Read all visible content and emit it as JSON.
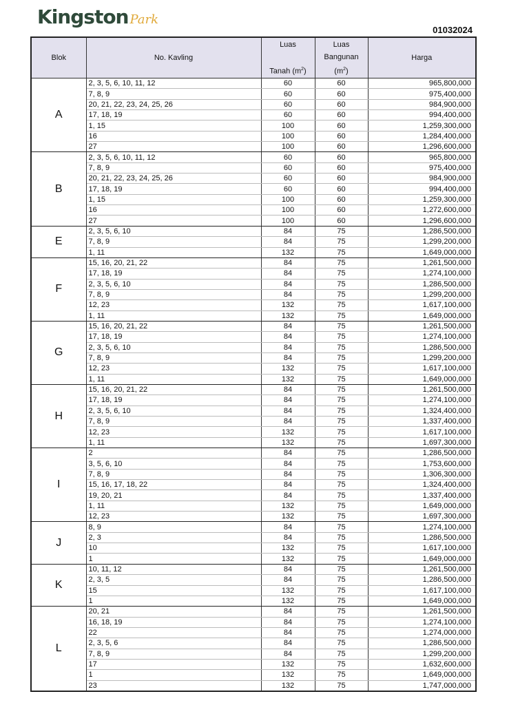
{
  "logo": {
    "main": "Kingston",
    "script": "Park"
  },
  "doc_code": "01032024",
  "headers": {
    "blok": "Blok",
    "kavling": "No. Kavling",
    "bangunan_1": "Luas",
    "bangunan_2": "Bangunan",
    "unit": "(m",
    "sq": "2",
    "close": ")",
    "harga": "Harga",
    "tanah_1": "Luas",
    "tanah_2": "Tanah"
  },
  "blocks": [
    {
      "blok": "A",
      "rows": [
        [
          "2, 3, 5, 6, 10, 11, 12",
          "60",
          "60",
          "965,800,000"
        ],
        [
          "7, 8, 9",
          "60",
          "60",
          "975,400,000"
        ],
        [
          "20, 21, 22, 23, 24, 25, 26",
          "60",
          "60",
          "984,900,000"
        ],
        [
          "17, 18, 19",
          "60",
          "60",
          "994,400,000"
        ],
        [
          "1, 15",
          "100",
          "60",
          "1,259,300,000"
        ],
        [
          "16",
          "100",
          "60",
          "1,284,400,000"
        ],
        [
          "27",
          "100",
          "60",
          "1,296,600,000"
        ]
      ]
    },
    {
      "blok": "B",
      "rows": [
        [
          "2, 3, 5, 6, 10, 11, 12",
          "60",
          "60",
          "965,800,000"
        ],
        [
          "7, 8, 9",
          "60",
          "60",
          "975,400,000"
        ],
        [
          "20, 21, 22, 23, 24, 25, 26",
          "60",
          "60",
          "984,900,000"
        ],
        [
          "17, 18, 19",
          "60",
          "60",
          "994,400,000"
        ],
        [
          "1, 15",
          "100",
          "60",
          "1,259,300,000"
        ],
        [
          "16",
          "100",
          "60",
          "1,272,600,000"
        ],
        [
          "27",
          "100",
          "60",
          "1,296,600,000"
        ]
      ]
    },
    {
      "blok": "E",
      "rows": [
        [
          "2, 3, 5, 6, 10",
          "84",
          "75",
          "1,286,500,000"
        ],
        [
          "7, 8, 9",
          "84",
          "75",
          "1,299,200,000"
        ],
        [
          "1, 11",
          "132",
          "75",
          "1,649,000,000"
        ]
      ]
    },
    {
      "blok": "F",
      "rows": [
        [
          "15, 16, 20, 21, 22",
          "84",
          "75",
          "1,261,500,000"
        ],
        [
          "17, 18, 19",
          "84",
          "75",
          "1,274,100,000"
        ],
        [
          "2, 3, 5, 6, 10",
          "84",
          "75",
          "1,286,500,000"
        ],
        [
          "7, 8, 9",
          "84",
          "75",
          "1,299,200,000"
        ],
        [
          "12, 23",
          "132",
          "75",
          "1,617,100,000"
        ],
        [
          "1, 11",
          "132",
          "75",
          "1,649,000,000"
        ]
      ]
    },
    {
      "blok": "G",
      "rows": [
        [
          "15, 16, 20, 21, 22",
          "84",
          "75",
          "1,261,500,000"
        ],
        [
          "17, 18, 19",
          "84",
          "75",
          "1,274,100,000"
        ],
        [
          "2, 3, 5, 6, 10",
          "84",
          "75",
          "1,286,500,000"
        ],
        [
          "7, 8, 9",
          "84",
          "75",
          "1,299,200,000"
        ],
        [
          "12, 23",
          "132",
          "75",
          "1,617,100,000"
        ],
        [
          "1, 11",
          "132",
          "75",
          "1,649,000,000"
        ]
      ]
    },
    {
      "blok": "H",
      "rows": [
        [
          "15, 16, 20, 21, 22",
          "84",
          "75",
          "1,261,500,000"
        ],
        [
          "17, 18, 19",
          "84",
          "75",
          "1,274,100,000"
        ],
        [
          "2, 3, 5, 6, 10",
          "84",
          "75",
          "1,324,400,000"
        ],
        [
          "7, 8, 9",
          "84",
          "75",
          "1,337,400,000"
        ],
        [
          "12, 23",
          "132",
          "75",
          "1,617,100,000"
        ],
        [
          "1, 11",
          "132",
          "75",
          "1,697,300,000"
        ]
      ]
    },
    {
      "blok": "I",
      "rows": [
        [
          "2",
          "84",
          "75",
          "1,286,500,000"
        ],
        [
          "3, 5, 6, 10",
          "84",
          "75",
          "1,753,600,000"
        ],
        [
          "7, 8, 9",
          "84",
          "75",
          "1,306,300,000"
        ],
        [
          "15, 16, 17, 18, 22",
          "84",
          "75",
          "1,324,400,000"
        ],
        [
          "19, 20, 21",
          "84",
          "75",
          "1,337,400,000"
        ],
        [
          "1, 11",
          "132",
          "75",
          "1,649,000,000"
        ],
        [
          "12, 23",
          "132",
          "75",
          "1,697,300,000"
        ]
      ]
    },
    {
      "blok": "J",
      "rows": [
        [
          "8, 9",
          "84",
          "75",
          "1,274,100,000"
        ],
        [
          "2, 3",
          "84",
          "75",
          "1,286,500,000"
        ],
        [
          "10",
          "132",
          "75",
          "1,617,100,000"
        ],
        [
          "1",
          "132",
          "75",
          "1,649,000,000"
        ]
      ]
    },
    {
      "blok": "K",
      "rows": [
        [
          "10, 11, 12",
          "84",
          "75",
          "1,261,500,000"
        ],
        [
          "2, 3, 5",
          "84",
          "75",
          "1,286,500,000"
        ],
        [
          "15",
          "132",
          "75",
          "1,617,100,000"
        ],
        [
          "1",
          "132",
          "75",
          "1,649,000,000"
        ]
      ]
    },
    {
      "blok": "L",
      "rows": [
        [
          "20, 21",
          "84",
          "75",
          "1,261,500,000"
        ],
        [
          "16, 18, 19",
          "84",
          "75",
          "1,274,100,000"
        ],
        [
          "22",
          "84",
          "75",
          "1,274,000,000"
        ],
        [
          "2, 3, 5, 6",
          "84",
          "75",
          "1,286,500,000"
        ],
        [
          "7, 8, 9",
          "84",
          "75",
          "1,299,200,000"
        ],
        [
          "17",
          "132",
          "75",
          "1,632,600,000"
        ],
        [
          "1",
          "132",
          "75",
          "1,649,000,000"
        ],
        [
          "23",
          "132",
          "75",
          "1,747,000,000"
        ]
      ]
    }
  ]
}
